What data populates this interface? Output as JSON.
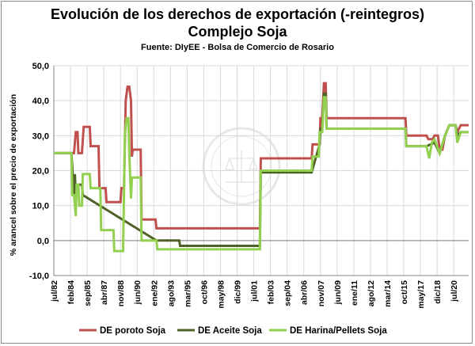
{
  "chart_data": {
    "type": "line",
    "title": "Evolución de los derechos de exportación (-reintegros)",
    "subtitle": "Complejo Soja",
    "source": "Fuente: DIyEE - Bolsa de Comercio de Rosario",
    "ylabel": "% arancel sobre el precio de exportación",
    "xlabel": "",
    "ylim": [
      -10,
      50
    ],
    "xlim": [
      "1982-07",
      "2021-12"
    ],
    "y_ticks": [
      "-10,0",
      "0,0",
      "10,0",
      "20,0",
      "30,0",
      "40,0",
      "50,0"
    ],
    "x_ticks": [
      "jul/82",
      "feb/84",
      "sep/85",
      "abr/87",
      "nov/88",
      "jun/90",
      "ene/92",
      "ago/93",
      "mar/95",
      "oct/96",
      "may/98",
      "dic/99",
      "jul/01",
      "feb/03",
      "sep/04",
      "abr/06",
      "nov/07",
      "jun/09",
      "ene/11",
      "ago/12",
      "mar/14",
      "oct/15",
      "may/17",
      "dic/18",
      "jul/20"
    ],
    "grid": true,
    "legend_position": "bottom",
    "watermark": "BOLSA DE COMERCIO DE ROSARIO",
    "series": [
      {
        "name": "DE poroto Soja",
        "color": "#c0504d",
        "points": [
          [
            "1982-07",
            25
          ],
          [
            "1984-03",
            25
          ],
          [
            "1984-06",
            25
          ],
          [
            "1984-08",
            31
          ],
          [
            "1984-10",
            31
          ],
          [
            "1984-11",
            25
          ],
          [
            "1985-03",
            25
          ],
          [
            "1985-05",
            32.5
          ],
          [
            "1985-12",
            32.5
          ],
          [
            "1986-01",
            27
          ],
          [
            "1986-10",
            27
          ],
          [
            "1986-11",
            15
          ],
          [
            "1987-06",
            15
          ],
          [
            "1987-07",
            11
          ],
          [
            "1988-11",
            11
          ],
          [
            "1988-12",
            15
          ],
          [
            "1989-03",
            15
          ],
          [
            "1989-05",
            40
          ],
          [
            "1989-07",
            44
          ],
          [
            "1989-09",
            44
          ],
          [
            "1989-11",
            40
          ],
          [
            "1989-12",
            24
          ],
          [
            "1990-01",
            26
          ],
          [
            "1990-10",
            26
          ],
          [
            "1990-11",
            6
          ],
          [
            "1992-03",
            6
          ],
          [
            "1992-04",
            3.5
          ],
          [
            "2002-02",
            3.5
          ],
          [
            "2002-03",
            23.5
          ],
          [
            "2007-01",
            23.5
          ],
          [
            "2007-02",
            27.5
          ],
          [
            "2007-10",
            27.5
          ],
          [
            "2007-11",
            35
          ],
          [
            "2008-01",
            35
          ],
          [
            "2008-03",
            45
          ],
          [
            "2008-05",
            45
          ],
          [
            "2008-06",
            35
          ],
          [
            "2015-12",
            35
          ],
          [
            "2016-01",
            30
          ],
          [
            "2017-12",
            30
          ],
          [
            "2018-02",
            29
          ],
          [
            "2018-07",
            29
          ],
          [
            "2018-09",
            30
          ],
          [
            "2019-01",
            30
          ],
          [
            "2019-03",
            26
          ],
          [
            "2019-06",
            26
          ],
          [
            "2019-09",
            30
          ],
          [
            "2020-02",
            33
          ],
          [
            "2020-09",
            33
          ],
          [
            "2020-11",
            31
          ],
          [
            "2021-03",
            33
          ],
          [
            "2021-12",
            33
          ]
        ]
      },
      {
        "name": "DE Aceite Soja",
        "color": "#4f6228",
        "points": [
          [
            "1982-07",
            25
          ],
          [
            "1984-03",
            25
          ],
          [
            "1984-06",
            13
          ],
          [
            "1984-07",
            19
          ],
          [
            "1984-08",
            13
          ],
          [
            "1984-09",
            16
          ],
          [
            "1985-03",
            16
          ],
          [
            "1985-04",
            13
          ],
          [
            "1992-04",
            0
          ],
          [
            "1994-06",
            0
          ],
          [
            "1994-07",
            -1.5
          ],
          [
            "2002-02",
            -1.5
          ],
          [
            "2002-03",
            19.5
          ],
          [
            "2007-01",
            19.5
          ],
          [
            "2007-10",
            27.5
          ],
          [
            "2007-11",
            32
          ],
          [
            "2008-01",
            32
          ],
          [
            "2008-03",
            42
          ],
          [
            "2008-05",
            42
          ],
          [
            "2008-06",
            32
          ],
          [
            "2015-12",
            32
          ],
          [
            "2016-01",
            27
          ],
          [
            "2017-12",
            27
          ],
          [
            "2018-09",
            28
          ],
          [
            "2019-03",
            25
          ],
          [
            "2019-09",
            30
          ],
          [
            "2020-02",
            33
          ],
          [
            "2020-09",
            33
          ],
          [
            "2020-11",
            30
          ],
          [
            "2021-03",
            31
          ],
          [
            "2021-12",
            31
          ]
        ]
      },
      {
        "name": "DE Harina/Pellets Soja",
        "color": "#92d050",
        "points": [
          [
            "1982-07",
            25
          ],
          [
            "1984-03",
            25
          ],
          [
            "1984-04",
            13
          ],
          [
            "1984-06",
            13
          ],
          [
            "1984-08",
            7
          ],
          [
            "1984-09",
            16
          ],
          [
            "1984-11",
            16
          ],
          [
            "1984-12",
            10
          ],
          [
            "1985-03",
            10
          ],
          [
            "1985-04",
            19
          ],
          [
            "1985-12",
            19
          ],
          [
            "1986-01",
            15
          ],
          [
            "1986-12",
            15
          ],
          [
            "1987-01",
            3
          ],
          [
            "1988-03",
            3
          ],
          [
            "1988-04",
            -3
          ],
          [
            "1989-02",
            -3
          ],
          [
            "1989-04",
            30
          ],
          [
            "1989-06",
            35
          ],
          [
            "1989-08",
            35
          ],
          [
            "1989-09",
            25
          ],
          [
            "1989-11",
            12
          ],
          [
            "1989-12",
            18
          ],
          [
            "1990-10",
            18
          ],
          [
            "1990-11",
            0
          ],
          [
            "1992-04",
            0
          ],
          [
            "1992-05",
            -2.5
          ],
          [
            "2002-02",
            -2.5
          ],
          [
            "2002-03",
            20
          ],
          [
            "2007-01",
            20
          ],
          [
            "2007-02",
            24
          ],
          [
            "2007-09",
            24
          ],
          [
            "2007-10",
            31
          ],
          [
            "2008-01",
            31
          ],
          [
            "2008-03",
            41
          ],
          [
            "2008-05",
            41
          ],
          [
            "2008-06",
            32
          ],
          [
            "2015-12",
            32
          ],
          [
            "2016-01",
            27
          ],
          [
            "2017-12",
            27
          ],
          [
            "2018-03",
            23.5
          ],
          [
            "2018-06",
            28
          ],
          [
            "2018-09",
            29
          ],
          [
            "2019-03",
            25
          ],
          [
            "2019-09",
            30
          ],
          [
            "2020-02",
            33
          ],
          [
            "2020-09",
            33
          ],
          [
            "2020-11",
            28
          ],
          [
            "2021-03",
            31
          ],
          [
            "2021-12",
            31
          ]
        ]
      }
    ]
  }
}
